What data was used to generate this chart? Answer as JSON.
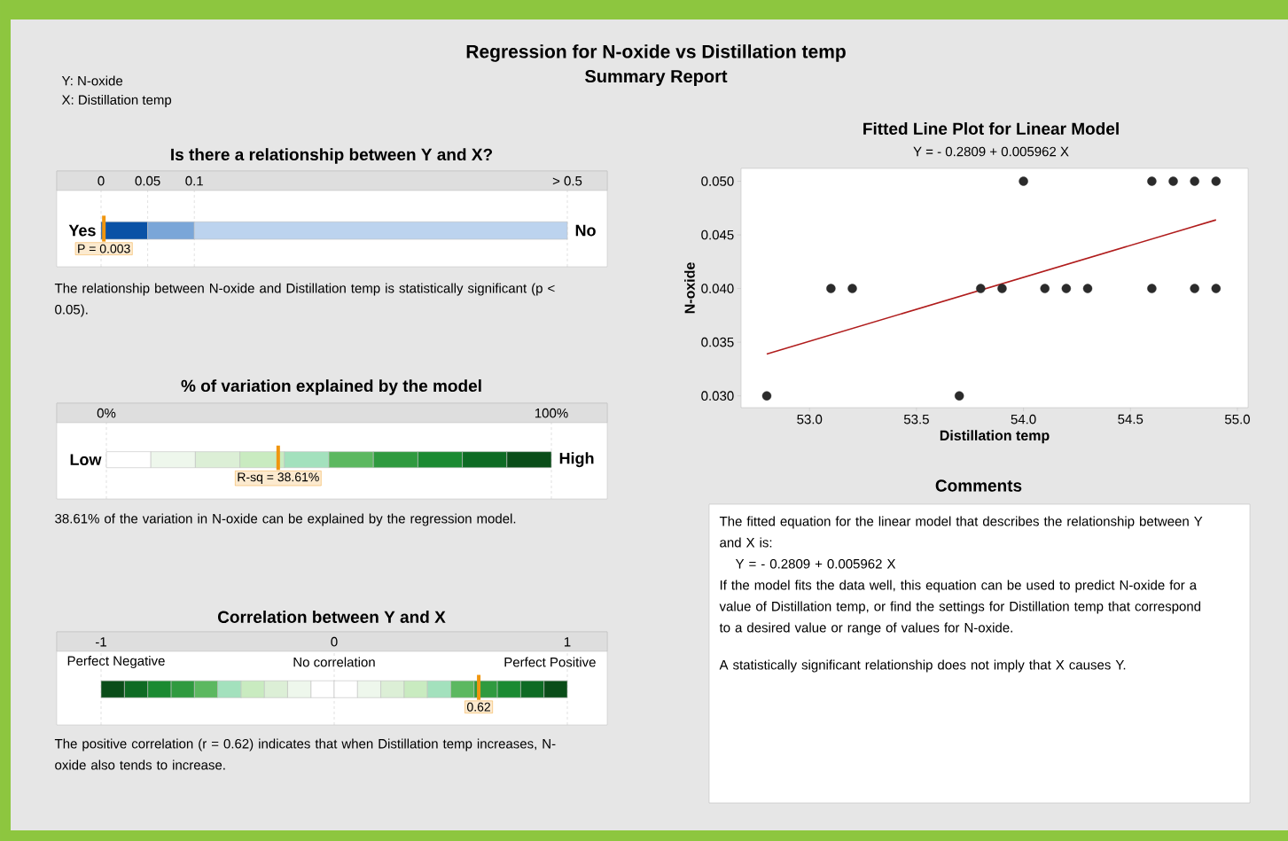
{
  "chart_data": [
    {
      "type": "other",
      "title": "Regression for N-oxide vs Distillation temp",
      "subtitle": "Summary Report",
      "annotations": [
        "Y: N-oxide",
        "X: Distillation temp"
      ]
    },
    {
      "type": "bar",
      "orientation": "horizontal",
      "stacked": true,
      "title": "Is there a relationship between Y and X?",
      "categories": [
        null
      ],
      "xlim": [
        0,
        0.5
      ],
      "xticks": [
        {
          "value": 0,
          "label": "0"
        },
        {
          "value": 0.05,
          "label": "0.05"
        },
        {
          "value": 0.1,
          "label": "0.1"
        },
        {
          "value": 0.5,
          "label": "> 0.5"
        }
      ],
      "grid": "x",
      "series": [
        {
          "color": "#0a52a6",
          "values": [
            0.05
          ]
        },
        {
          "color": "#7aa6d8",
          "values": [
            0.05
          ]
        },
        {
          "color": "#bcd3ee",
          "values": [
            0.4
          ]
        }
      ],
      "ref_lines": [
        {
          "axis": "x",
          "value": 0.003,
          "label": "P = 0.003",
          "color": "#f0960f"
        }
      ],
      "annotations": [
        "Yes",
        "No",
        "The relationship between N-oxide and Distillation temp is statistically significant (p < 0.05)."
      ]
    },
    {
      "type": "bar",
      "orientation": "horizontal",
      "stacked": true,
      "title": "% of variation explained by the model",
      "categories": [
        null
      ],
      "xlim": [
        0,
        100
      ],
      "xticks": [
        {
          "value": 0,
          "label": "0%"
        },
        {
          "value": 100,
          "label": "100%"
        }
      ],
      "grid": "x",
      "series": [
        {
          "color": "#ffffff",
          "values": [
            10
          ]
        },
        {
          "color": "#eef7ec",
          "values": [
            10
          ]
        },
        {
          "color": "#dcefd6",
          "values": [
            10
          ]
        },
        {
          "color": "#c9ebc0",
          "values": [
            10
          ]
        },
        {
          "color": "#a3e1bd",
          "values": [
            10
          ]
        },
        {
          "color": "#5cb860",
          "values": [
            10
          ]
        },
        {
          "color": "#2f9a3f",
          "values": [
            10
          ]
        },
        {
          "color": "#1b8a32",
          "values": [
            10
          ]
        },
        {
          "color": "#0e6b24",
          "values": [
            10
          ]
        },
        {
          "color": "#0a4d19",
          "values": [
            10
          ]
        }
      ],
      "ref_lines": [
        {
          "axis": "x",
          "value": 38.61,
          "label": "R-sq = 38.61%",
          "color": "#f0960f"
        }
      ],
      "annotations": [
        "Low",
        "High",
        "38.61% of the variation in N-oxide can be explained by the regression model."
      ]
    },
    {
      "type": "bar",
      "orientation": "horizontal",
      "stacked": true,
      "title": "Correlation between Y and X",
      "categories": [
        null
      ],
      "xlim": [
        -1,
        1
      ],
      "xticks": [
        {
          "value": -1,
          "label": "-1"
        },
        {
          "value": 0,
          "label": "0"
        },
        {
          "value": 1,
          "label": "1"
        }
      ],
      "grid": "x",
      "series": [
        {
          "color": "#ffffff",
          "values": [
            -0.1
          ]
        },
        {
          "color": "#eef7ec",
          "values": [
            -0.1
          ]
        },
        {
          "color": "#dcefd6",
          "values": [
            -0.1
          ]
        },
        {
          "color": "#c9ebc0",
          "values": [
            -0.1
          ]
        },
        {
          "color": "#a3e1bd",
          "values": [
            -0.1
          ]
        },
        {
          "color": "#5cb860",
          "values": [
            -0.1
          ]
        },
        {
          "color": "#2f9a3f",
          "values": [
            -0.1
          ]
        },
        {
          "color": "#1b8a32",
          "values": [
            -0.1
          ]
        },
        {
          "color": "#0e6b24",
          "values": [
            -0.1
          ]
        },
        {
          "color": "#0a4d19",
          "values": [
            -0.1
          ]
        },
        {
          "color": "#ffffff",
          "values": [
            0.1
          ]
        },
        {
          "color": "#eef7ec",
          "values": [
            0.1
          ]
        },
        {
          "color": "#dcefd6",
          "values": [
            0.1
          ]
        },
        {
          "color": "#c9ebc0",
          "values": [
            0.1
          ]
        },
        {
          "color": "#a3e1bd",
          "values": [
            0.1
          ]
        },
        {
          "color": "#5cb860",
          "values": [
            0.1
          ]
        },
        {
          "color": "#2f9a3f",
          "values": [
            0.1
          ]
        },
        {
          "color": "#1b8a32",
          "values": [
            0.1
          ]
        },
        {
          "color": "#0e6b24",
          "values": [
            0.1
          ]
        },
        {
          "color": "#0a4d19",
          "values": [
            0.1
          ]
        }
      ],
      "ref_lines": [
        {
          "axis": "x",
          "value": 0.62,
          "label": "0.62",
          "color": "#f0960f"
        }
      ],
      "annotations": [
        "Perfect Negative",
        "No correlation",
        "Perfect Positive",
        "The positive correlation (r = 0.62) indicates that when Distillation temp increases, N-oxide also tends to increase."
      ]
    },
    {
      "type": "scatter",
      "title": "Fitted Line Plot for Linear Model",
      "subtitle": "Y = - 0.2809 + 0.005962 X",
      "xlabel": "Distillation temp",
      "ylabel": "N-oxide",
      "xlim": [
        52.68,
        55.05
      ],
      "ylim": [
        0.0289,
        0.0512
      ],
      "xticks": [
        {
          "value": 53,
          "label": "53.0"
        },
        {
          "value": 53.5,
          "label": "53.5"
        },
        {
          "value": 54,
          "label": "54.0"
        },
        {
          "value": 54.5,
          "label": "54.5"
        },
        {
          "value": 55,
          "label": "55.0"
        }
      ],
      "yticks": [
        {
          "value": 0.03,
          "label": "0.030"
        },
        {
          "value": 0.035,
          "label": "0.035"
        },
        {
          "value": 0.04,
          "label": "0.040"
        },
        {
          "value": 0.045,
          "label": "0.045"
        },
        {
          "value": 0.05,
          "label": "0.050"
        }
      ],
      "series": [
        {
          "type": "scatter",
          "color": "#2b2b2b",
          "x": [
            54.0,
            54.6,
            54.7,
            54.8,
            54.9,
            53.1,
            53.2,
            53.8,
            53.9,
            54.1,
            54.2,
            54.3,
            54.6,
            54.8,
            54.9,
            52.8,
            53.7
          ],
          "values": [
            0.05,
            0.05,
            0.05,
            0.05,
            0.05,
            0.04,
            0.04,
            0.04,
            0.04,
            0.04,
            0.04,
            0.04,
            0.04,
            0.04,
            0.04,
            0.03,
            0.03
          ]
        },
        {
          "type": "line",
          "color": "#b01c1c",
          "x": [
            52.8,
            54.9
          ],
          "values": [
            0.0339,
            0.0464
          ]
        }
      ]
    },
    {
      "type": "other",
      "title": "Comments",
      "annotations": [
        "The fitted equation for the linear model that describes the relationship between Y and X is:",
        "Y = - 0.2809 + 0.005962 X",
        "If the model fits the data well, this equation can be used to predict N-oxide for a value of Distillation temp, or find the settings for Distillation temp that correspond to a desired value or range of values for N-oxide.",
        "A statistically significant relationship does not imply that X causes Y."
      ]
    }
  ]
}
